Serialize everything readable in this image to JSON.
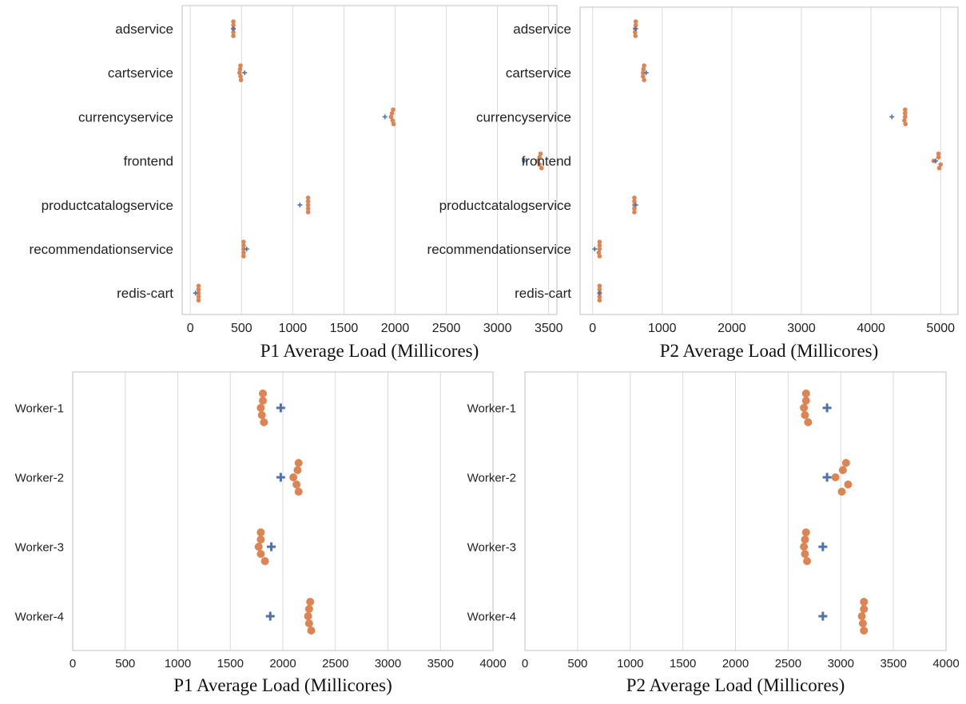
{
  "colors": {
    "baseline": "#4c72b0",
    "samples": "#dd8452",
    "grid": "#d9d9d9",
    "frame": "#cccccc"
  },
  "chart_data": [
    {
      "type": "scatter",
      "id": "p1-services",
      "xlabel": "P1 Average Load (Millicores)",
      "xlim": [
        -80,
        3580
      ],
      "xticks": [
        0,
        500,
        1000,
        1500,
        2000,
        2500,
        3000,
        3500
      ],
      "categories": [
        "adservice",
        "cartservice",
        "currencyservice",
        "frontend",
        "productcatalogservice",
        "recommendationservice",
        "redis-cart"
      ],
      "baseline": [
        420,
        530,
        1900,
        3260,
        1070,
        550,
        50
      ],
      "samples": [
        [
          420,
          420,
          420,
          420,
          420
        ],
        [
          490,
          485,
          480,
          490,
          495
        ],
        [
          1980,
          1970,
          1960,
          1975,
          1985
        ],
        [
          3420,
          3410,
          3390,
          3410,
          3430
        ],
        [
          1150,
          1150,
          1150,
          1150,
          1150
        ],
        [
          520,
          520,
          520,
          520,
          520
        ],
        [
          80,
          80,
          80,
          80,
          80
        ]
      ],
      "grid": true
    },
    {
      "type": "scatter",
      "id": "p2-services",
      "xlabel": "P2 Average Load (Millicores)",
      "xlim": [
        -180,
        5250
      ],
      "xticks": [
        0,
        1000,
        2000,
        3000,
        4000,
        5000
      ],
      "categories": [
        "adservice",
        "cartservice",
        "currencyservice",
        "frontend",
        "productcatalogservice",
        "recommendationservice",
        "redis-cart"
      ],
      "baseline": [
        620,
        770,
        4300,
        4930,
        620,
        30,
        100
      ],
      "samples": [
        [
          620,
          620,
          610,
          610,
          615
        ],
        [
          740,
          730,
          725,
          725,
          740
        ],
        [
          4490,
          4490,
          4490,
          4480,
          4495
        ],
        [
          4970,
          4970,
          4900,
          5000,
          4980
        ],
        [
          600,
          600,
          600,
          600,
          600
        ],
        [
          100,
          100,
          100,
          90,
          100
        ],
        [
          100,
          100,
          100,
          100,
          100
        ]
      ],
      "grid": true
    },
    {
      "type": "scatter",
      "id": "p1-workers",
      "xlabel": "P1 Average Load (Millicores)",
      "xlim": [
        0,
        4000
      ],
      "xticks": [
        0,
        500,
        1000,
        1500,
        2000,
        2500,
        3000,
        3500,
        4000
      ],
      "categories": [
        "Worker-1",
        "Worker-2",
        "Worker-3",
        "Worker-4"
      ],
      "baseline": [
        1980,
        1980,
        1890,
        1880
      ],
      "samples": [
        [
          1810,
          1810,
          1790,
          1800,
          1820
        ],
        [
          2150,
          2140,
          2100,
          2130,
          2150
        ],
        [
          1790,
          1790,
          1770,
          1790,
          1830
        ],
        [
          2260,
          2250,
          2240,
          2250,
          2270
        ]
      ],
      "grid": true
    },
    {
      "type": "scatter",
      "id": "p2-workers",
      "xlabel": "P2 Average Load (Millicores)",
      "xlim": [
        0,
        4000
      ],
      "xticks": [
        0,
        500,
        1000,
        1500,
        2000,
        2500,
        3000,
        3500,
        4000
      ],
      "categories": [
        "Worker-1",
        "Worker-2",
        "Worker-3",
        "Worker-4"
      ],
      "baseline": [
        2870,
        2870,
        2830,
        2830
      ],
      "samples": [
        [
          2670,
          2670,
          2650,
          2660,
          2690
        ],
        [
          3050,
          3020,
          2950,
          3070,
          3010
        ],
        [
          2670,
          2660,
          2650,
          2660,
          2680
        ],
        [
          3220,
          3220,
          3200,
          3210,
          3220
        ]
      ],
      "grid": true
    }
  ]
}
